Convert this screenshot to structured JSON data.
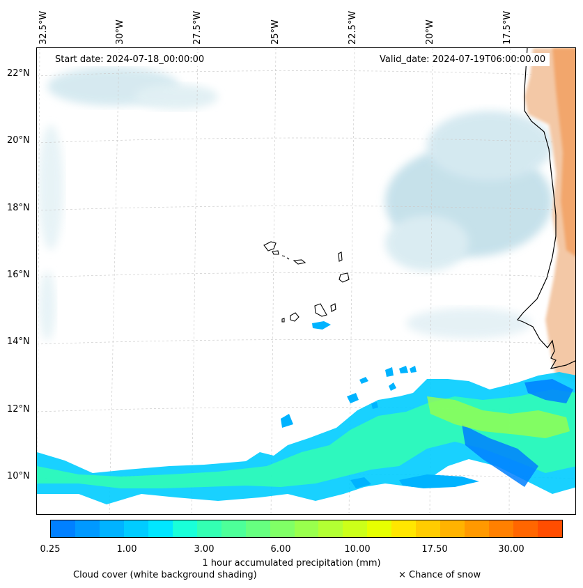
{
  "map": {
    "start_date": "Start date: 2024-07-18_00:00:00",
    "valid_date": "Valid_date: 2024-07-19T06:00:00.00",
    "lon_labels": [
      "32.5°W",
      "30°W",
      "27.5°W",
      "25°W",
      "22.5°W",
      "20°W",
      "17.5°W"
    ],
    "lat_labels": [
      "22°N",
      "20°N",
      "18°N",
      "16°N",
      "14°N",
      "12°N",
      "10°N"
    ],
    "colors": {
      "land": "#f0b080",
      "cloud": "#cfe6ee",
      "coast": "#000000",
      "grid": "#cccccc"
    }
  },
  "colorbar": {
    "title": "1 hour accumulated precipitation (mm)",
    "tick_labels": [
      "0.25",
      "1.00",
      "3.00",
      "6.00",
      "10.00",
      "17.50",
      "30.00"
    ],
    "colors": [
      "#0080ff",
      "#0099ff",
      "#00b3ff",
      "#00ccff",
      "#00e6ff",
      "#19ffd9",
      "#33ffb3",
      "#4dff99",
      "#66ff80",
      "#80ff66",
      "#99ff4d",
      "#b3ff33",
      "#ccff19",
      "#e6ff00",
      "#ffe600",
      "#ffcc00",
      "#ffb300",
      "#ff9900",
      "#ff8000",
      "#ff6600",
      "#ff4d00"
    ]
  },
  "notes": {
    "cloud_cover": "Cloud cover (white background shading)",
    "snow": "× Chance of snow"
  }
}
